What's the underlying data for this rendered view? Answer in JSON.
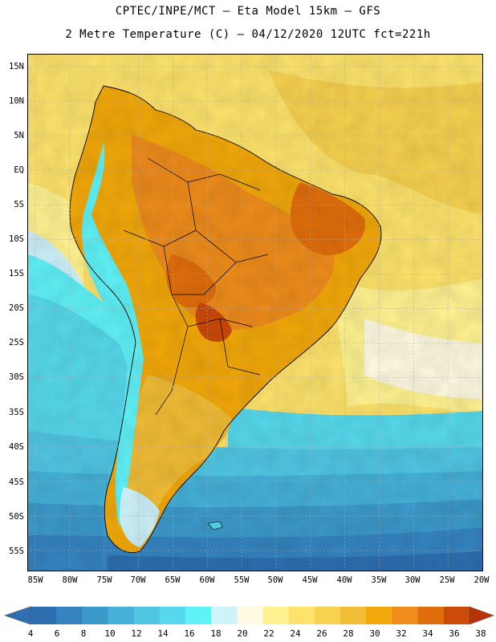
{
  "header": {
    "line1": "CPTEC/INPE/MCT –  Eta Model 15km – GFS",
    "line2": "2 Metre Temperature (C) – 04/12/2020 12UTC fct=221h"
  },
  "map": {
    "lat_labels": [
      "15N",
      "10N",
      "5N",
      "EQ",
      "5S",
      "10S",
      "15S",
      "20S",
      "25S",
      "30S",
      "35S",
      "40S",
      "45S",
      "50S",
      "55S"
    ],
    "lon_labels": [
      "85W",
      "80W",
      "75W",
      "70W",
      "65W",
      "60W",
      "55W",
      "50W",
      "45W",
      "40W",
      "35W",
      "30W",
      "25W",
      "20W"
    ]
  },
  "colorbar": {
    "labels": [
      "4",
      "6",
      "8",
      "10",
      "12",
      "14",
      "16",
      "18",
      "20",
      "22",
      "24",
      "26",
      "28",
      "30",
      "32",
      "34",
      "36",
      "38"
    ],
    "colors": [
      "#2d6fb0",
      "#3584c0",
      "#3c9acb",
      "#46b1d8",
      "#50c6e3",
      "#56d9ec",
      "#5ff2f7",
      "#cff3fb",
      "#fffbe2",
      "#fff391",
      "#fde36c",
      "#f7d24f",
      "#f1bd36",
      "#f2a80a",
      "#ee8c1c",
      "#e06e0c",
      "#cc4a0a",
      "#b83208"
    ]
  }
}
